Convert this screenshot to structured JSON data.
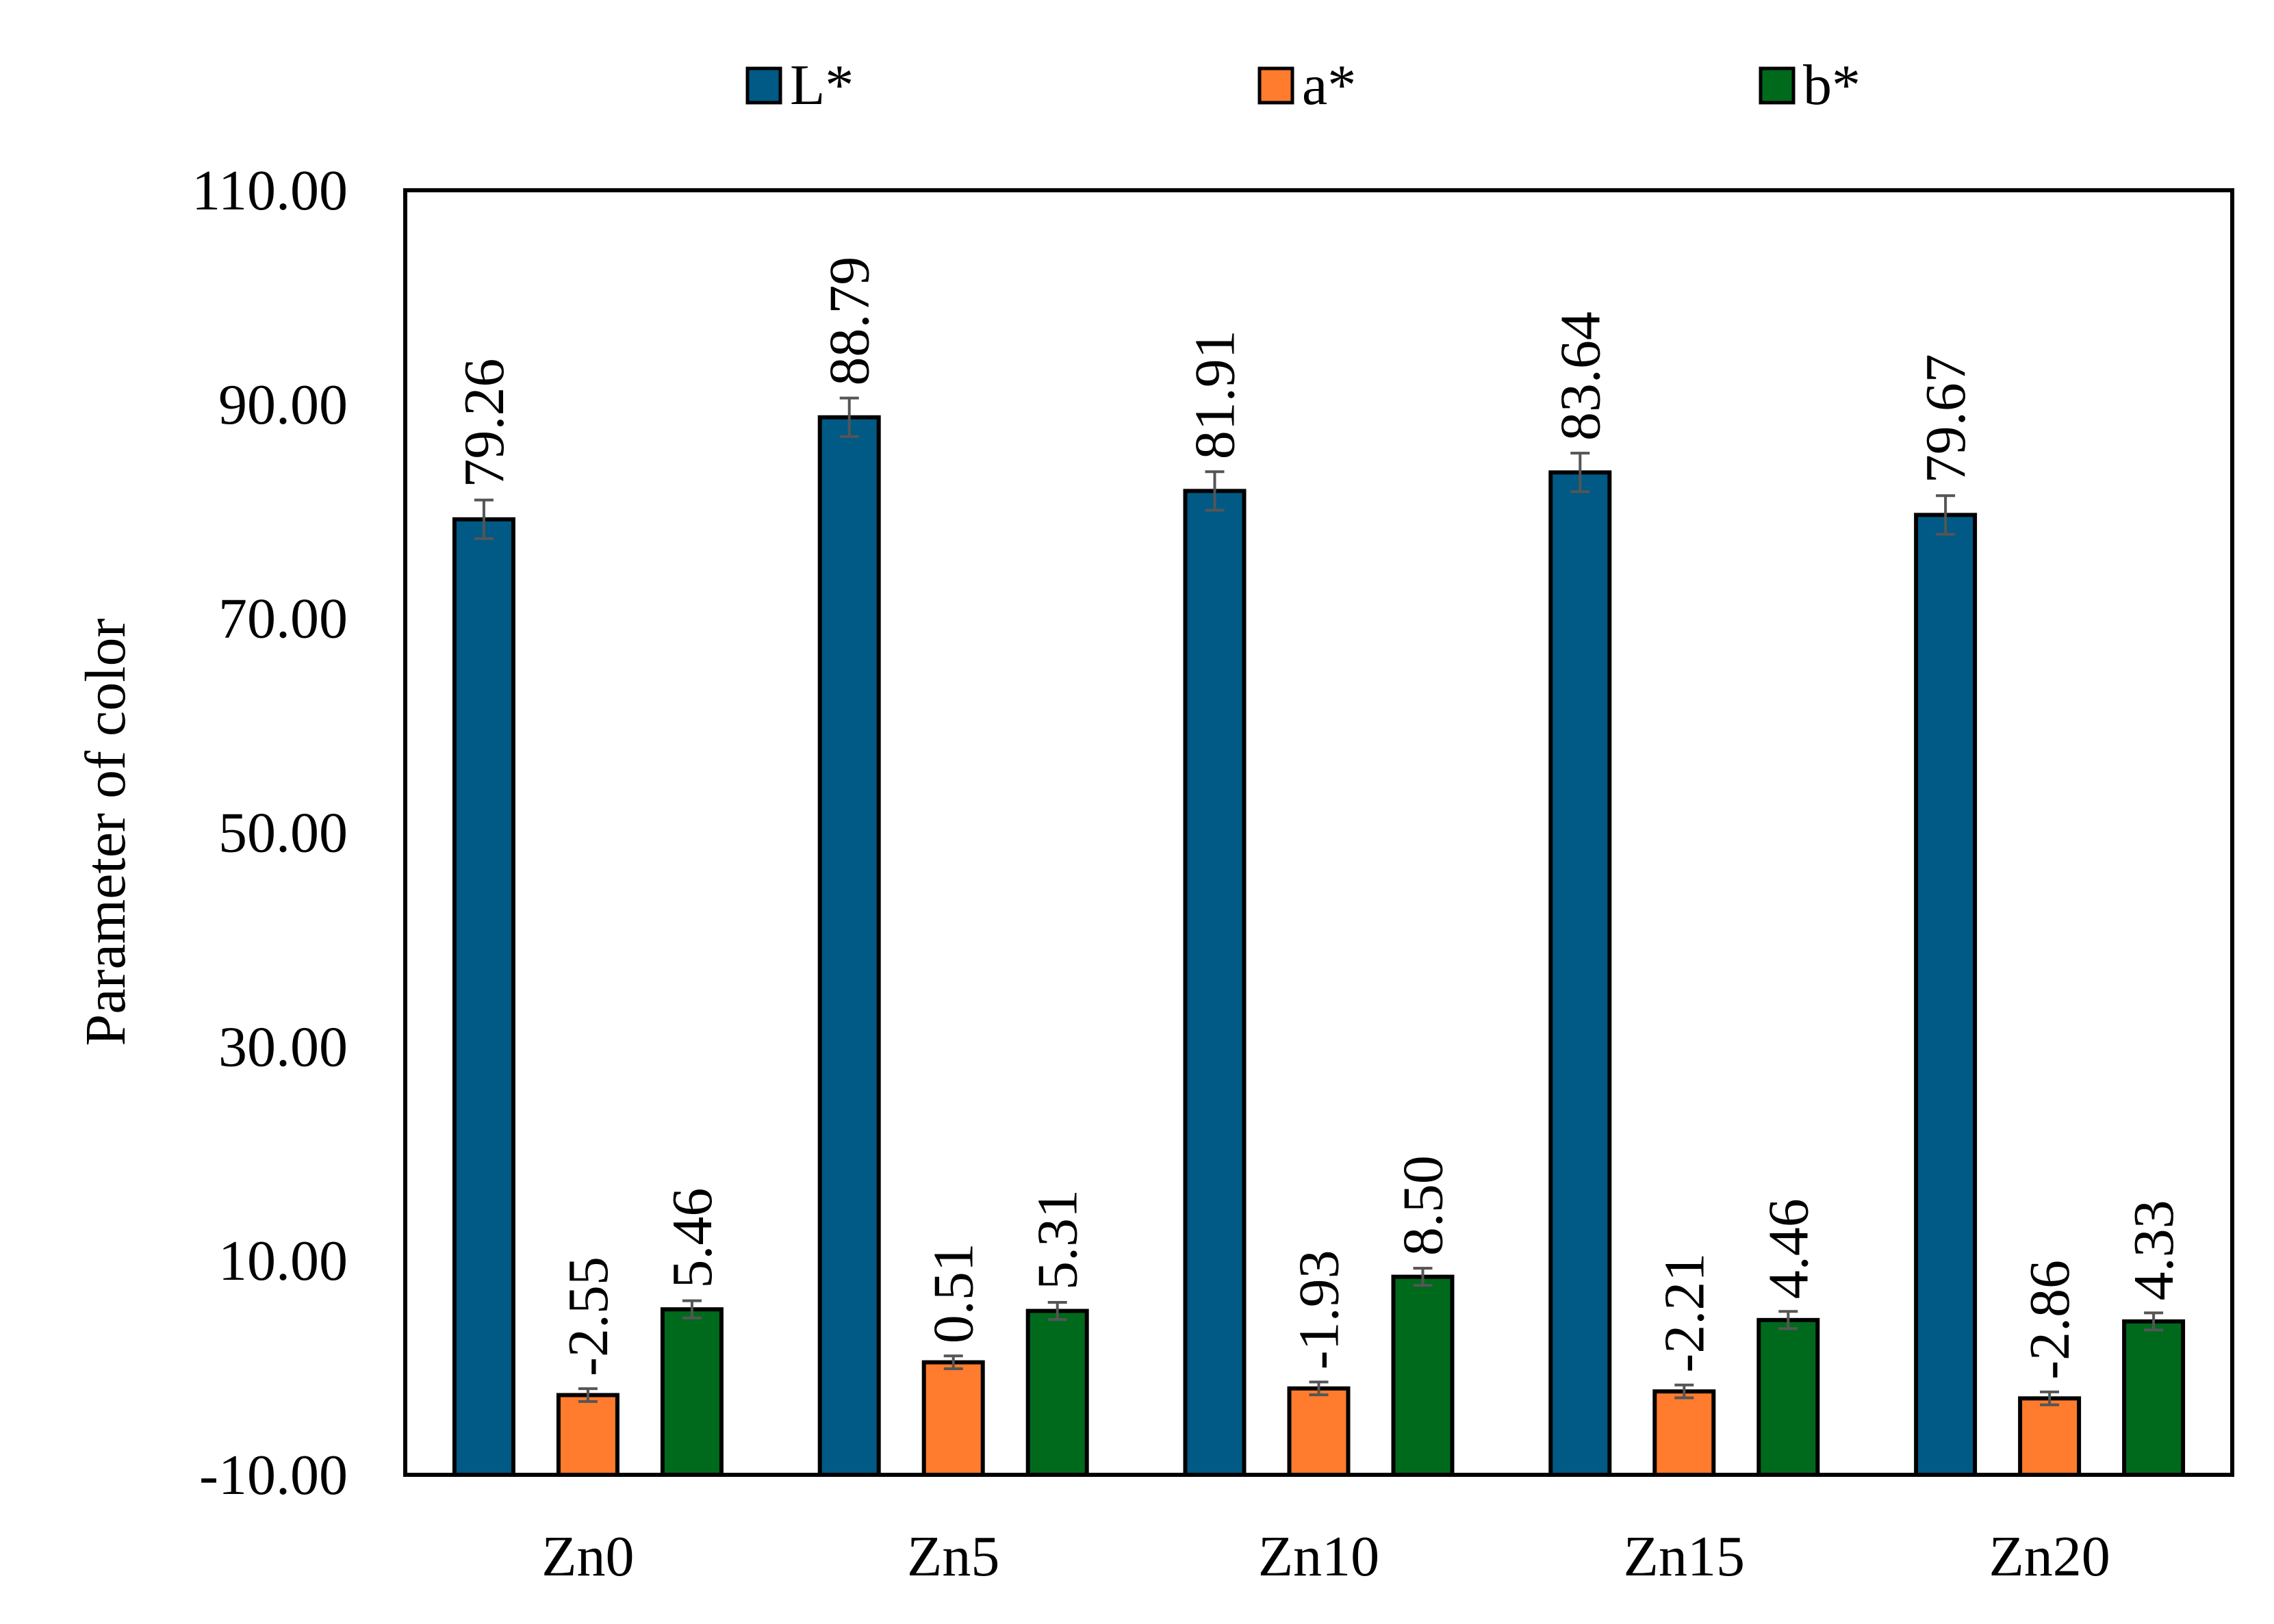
{
  "chart_data": {
    "type": "bar",
    "title": "",
    "xlabel": "",
    "ylabel": "Parameter of color",
    "ylim": [
      -10,
      110
    ],
    "y_ticks": [
      "-10.00",
      "10.00",
      "30.00",
      "50.00",
      "70.00",
      "90.00",
      "110.00"
    ],
    "y_tick_values": [
      -10,
      10,
      30,
      50,
      70,
      90,
      110
    ],
    "grid": false,
    "legend_position": "top",
    "categories": [
      "Zn0",
      "Zn5",
      "Zn10",
      "Zn15",
      "Zn20"
    ],
    "series": [
      {
        "name": "L*",
        "color": "#005a85",
        "values": [
          79.26,
          88.79,
          81.91,
          83.64,
          79.67
        ],
        "labels": [
          "79.26",
          "88.79",
          "81.91",
          "83.64",
          "79.67"
        ],
        "errors": [
          1.8,
          1.8,
          1.8,
          1.8,
          1.8
        ]
      },
      {
        "name": "a*",
        "color": "#ff7b2e",
        "values": [
          -2.55,
          0.51,
          -1.93,
          -2.21,
          -2.86
        ],
        "labels": [
          "-2.55",
          "0.51",
          "-1.93",
          "-2.21",
          "-2.86"
        ],
        "errors": [
          0.6,
          0.6,
          0.6,
          0.6,
          0.6
        ]
      },
      {
        "name": "b*",
        "color": "#006a1c",
        "values": [
          5.46,
          5.31,
          8.5,
          4.46,
          4.33
        ],
        "labels": [
          "5.46",
          "5.31",
          "8.50",
          "4.46",
          "4.33"
        ],
        "errors": [
          0.8,
          0.8,
          0.8,
          0.8,
          0.8
        ]
      }
    ]
  }
}
